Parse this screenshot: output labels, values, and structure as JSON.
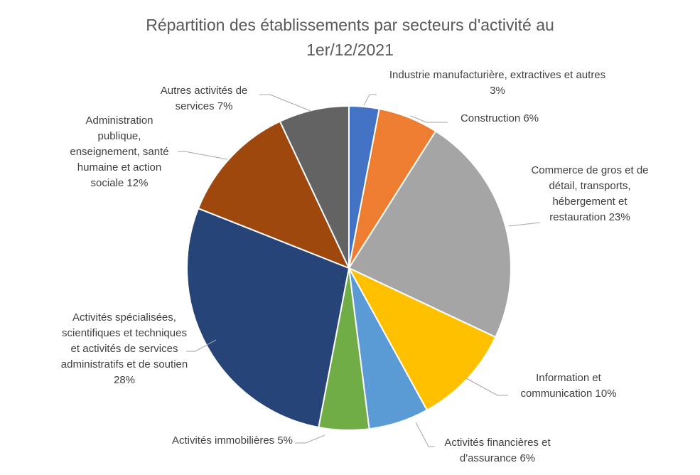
{
  "chart_data": {
    "type": "pie",
    "title": "Répartition des établissements par secteurs d'activité au 1er/12/2021",
    "categories": [
      "Industrie manufacturière, extractives et autres",
      "Construction",
      "Commerce de gros et de détail, transports, hébergement et restauration",
      "Information et communication",
      "Activités financières et d'assurance",
      "Activités immobilières",
      "Activités spécialisées, scientifiques et techniques et activités de services administratifs et de soutien",
      "Administration publique, enseignement, santé humaine et action sociale",
      "Autres activités de services"
    ],
    "values": [
      3,
      6,
      23,
      10,
      6,
      5,
      28,
      12,
      7
    ],
    "value_labels": [
      "3%",
      "6%",
      "23%",
      "10%",
      "6%",
      "5%",
      "28%",
      "12%",
      "7%"
    ],
    "colors": [
      "#4472c4",
      "#ed7d31",
      "#a5a5a5",
      "#ffc000",
      "#5b9bd5",
      "#70ad47",
      "#264478",
      "#9e480e",
      "#636363"
    ]
  }
}
